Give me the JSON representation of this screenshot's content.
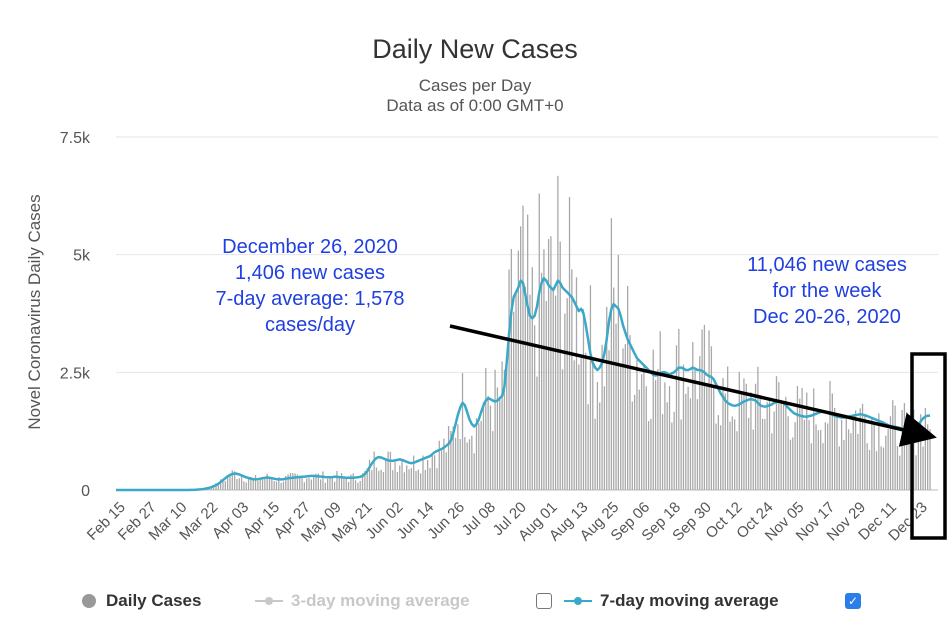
{
  "chart_data": {
    "type": "bar",
    "title": "Daily New Cases",
    "subtitle_lines": [
      "Cases per Day",
      "Data as of 0:00 GMT+0"
    ],
    "ylabel": "Novel Coronavirus Daily Cases",
    "ylim": [
      0,
      7500
    ],
    "y_ticks": [
      {
        "value": 0,
        "label": "0"
      },
      {
        "value": 2500,
        "label": "2.5k"
      },
      {
        "value": 5000,
        "label": "5k"
      },
      {
        "value": 7500,
        "label": "7.5k"
      }
    ],
    "x_tick_labels": [
      "Feb 15",
      "Feb 27",
      "Mar 10",
      "Mar 22",
      "Apr 03",
      "Apr 15",
      "Apr 27",
      "May 09",
      "May 21",
      "Jun 02",
      "Jun 14",
      "Jun 26",
      "Jul 08",
      "Jul 20",
      "Aug 01",
      "Aug 13",
      "Aug 25",
      "Sep 06",
      "Sep 18",
      "Sep 30",
      "Oct 12",
      "Oct 24",
      "Nov 05",
      "Nov 17",
      "Nov 29",
      "Dec 11",
      "Dec 23"
    ],
    "grid": true,
    "series": [
      {
        "name": "Daily Cases",
        "kind": "bar",
        "color": "#9e9e9e"
      },
      {
        "name": "3-day moving average",
        "kind": "line",
        "enabled": false,
        "color": "#c8c8c8"
      },
      {
        "name": "7-day moving average",
        "kind": "line",
        "enabled": true,
        "color": "#3aa8c8",
        "values": [
          0,
          0,
          0,
          0,
          0,
          0,
          0,
          0,
          0,
          0,
          0,
          0,
          0,
          0,
          0,
          0,
          0,
          0,
          0,
          0,
          0,
          0,
          0,
          0,
          0,
          0,
          0,
          0,
          0,
          0,
          1,
          1,
          2,
          3,
          5,
          8,
          12,
          18,
          25,
          35,
          45,
          60,
          80,
          105,
          130,
          170,
          210,
          250,
          290,
          320,
          340,
          350,
          345,
          330,
          310,
          290,
          270,
          255,
          240,
          230,
          225,
          230,
          240,
          250,
          260,
          265,
          260,
          250,
          240,
          230,
          225,
          225,
          230,
          240,
          250,
          255,
          260,
          265,
          270,
          275,
          280,
          285,
          290,
          295,
          300,
          300,
          295,
          290,
          285,
          280,
          275,
          270,
          270,
          275,
          280,
          280,
          275,
          270,
          265,
          262,
          260,
          260,
          262,
          265,
          270,
          280,
          300,
          340,
          400,
          480,
          560,
          630,
          680,
          700,
          690,
          670,
          650,
          630,
          620,
          620,
          630,
          640,
          650,
          640,
          620,
          600,
          580,
          570,
          580,
          600,
          620,
          640,
          660,
          680,
          700,
          720,
          760,
          800,
          830,
          850,
          870,
          900,
          940,
          980,
          1050,
          1200,
          1400,
          1600,
          1750,
          1850,
          1800,
          1650,
          1500,
          1400,
          1350,
          1400,
          1500,
          1650,
          1800,
          1900,
          1950,
          1930,
          1900,
          1880,
          1900,
          1950,
          2000,
          2200,
          2700,
          3300,
          3800,
          4100,
          4200,
          4300,
          4450,
          4400,
          4150,
          3900,
          3700,
          3650,
          3700,
          3900,
          4200,
          4400,
          4500,
          4450,
          4350,
          4300,
          4250,
          4350,
          4450,
          4400,
          4300,
          4250,
          4200,
          4150,
          4100,
          4000,
          3900,
          3800,
          3850,
          3750,
          3500,
          3200,
          2900,
          2700,
          2600,
          2550,
          2600,
          2700,
          2900,
          3200,
          3600,
          3850,
          3950,
          3900,
          3850,
          3700,
          3500,
          3350,
          3200,
          3100,
          3000,
          2900,
          2800,
          2750,
          2700,
          2650,
          2600,
          2550,
          2500,
          2450,
          2430,
          2450,
          2480,
          2500,
          2500,
          2480,
          2450,
          2480,
          2500,
          2550,
          2600,
          2600,
          2580,
          2550,
          2550,
          2570,
          2600,
          2580,
          2550,
          2550,
          2530,
          2500,
          2450,
          2420,
          2400,
          2350,
          2250,
          2150,
          2050,
          1980,
          1900,
          1850,
          1820,
          1800,
          1790,
          1800,
          1820,
          1850,
          1880,
          1900,
          1920,
          1930,
          1920,
          1900,
          1850,
          1800,
          1780,
          1770,
          1780,
          1800,
          1820,
          1850,
          1870,
          1880,
          1870,
          1850,
          1800,
          1750,
          1700,
          1650,
          1620,
          1600,
          1580,
          1570,
          1560,
          1560,
          1570,
          1580,
          1600,
          1620,
          1640,
          1660,
          1670,
          1660,
          1640,
          1620,
          1600,
          1580,
          1560,
          1550,
          1540,
          1540,
          1550,
          1560,
          1570,
          1580,
          1590,
          1600,
          1610,
          1600,
          1590,
          1570,
          1550,
          1530,
          1510,
          1490,
          1470,
          1450,
          1430,
          1400,
          1380,
          1360,
          1350,
          1340,
          1330,
          1320,
          1300,
          1280,
          1260,
          1240,
          1230,
          1250,
          1300,
          1380,
          1460,
          1520,
          1560,
          1580,
          1578
        ]
      }
    ],
    "annotations": [
      {
        "lines": [
          "December 26, 2020",
          "1,406 new cases",
          "7-day average: 1,578",
          "cases/day"
        ]
      },
      {
        "lines": [
          "11,046 new cases",
          "for the week",
          "Dec 20-26, 2020"
        ]
      }
    ]
  },
  "legend": {
    "daily_cases": "Daily Cases",
    "three_day": "3-day moving average",
    "seven_day": "7-day moving average",
    "checkbox_check": "✓"
  }
}
